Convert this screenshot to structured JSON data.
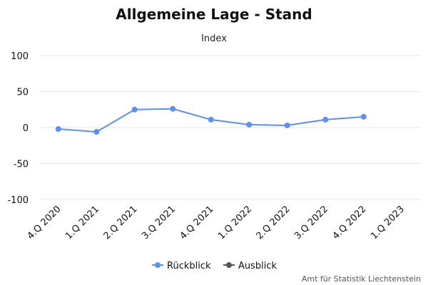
{
  "chart_data": {
    "type": "line",
    "title": "Allgemeine Lage - Stand",
    "subtitle": "Index",
    "categories": [
      "4.Q 2020",
      "1.Q 2021",
      "2.Q 2021",
      "3.Q 2021",
      "4.Q 2021",
      "1.Q 2022",
      "2.Q 2022",
      "3.Q 2022",
      "4.Q 2022",
      "1.Q 2023"
    ],
    "ylim": [
      -100,
      100
    ],
    "yticks": [
      "100",
      "50",
      "0",
      "-50",
      "-100"
    ],
    "grid": true,
    "legend_position": "bottom-center",
    "series": [
      {
        "name": "Rückblick",
        "color": "#5B8FF0",
        "values": [
          -2,
          -6,
          25,
          26,
          11,
          4,
          3,
          11,
          15,
          null
        ]
      },
      {
        "name": "Ausblick",
        "color": "#555555",
        "values": [
          null,
          null,
          null,
          null,
          null,
          null,
          null,
          null,
          null,
          null
        ]
      }
    ]
  },
  "credits": "Amt für Statistik Liechtenstein"
}
